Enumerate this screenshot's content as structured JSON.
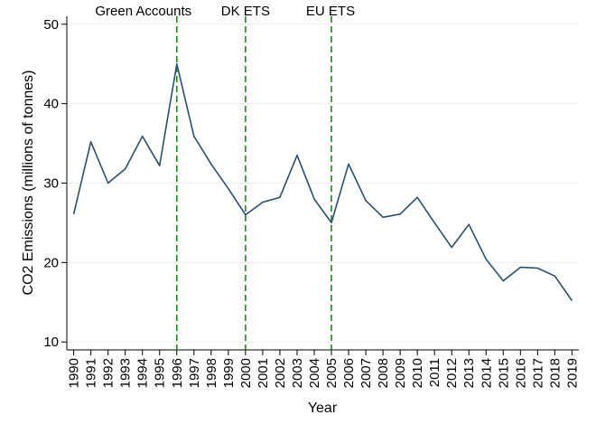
{
  "chart_data": {
    "type": "line",
    "title": "",
    "xlabel": "Year",
    "ylabel": "CO2 Emissions (millions of tonnes)",
    "ylim": [
      9,
      51
    ],
    "xlim": [
      1989.6,
      2019.4
    ],
    "yticks": [
      10,
      20,
      30,
      40,
      50
    ],
    "grid": true,
    "legend": "none",
    "colors": {
      "line": "#2b4f6e",
      "vline": "#1a8a1a",
      "grid": "#ececec"
    },
    "x": [
      1990,
      1991,
      1992,
      1993,
      1994,
      1995,
      1996,
      1997,
      1998,
      1999,
      2000,
      2001,
      2002,
      2003,
      2004,
      2005,
      2006,
      2007,
      2008,
      2009,
      2010,
      2011,
      2012,
      2013,
      2014,
      2015,
      2016,
      2017,
      2018,
      2019
    ],
    "xtick_labels": [
      "1990",
      "1991",
      "1992",
      "1993",
      "1994",
      "1995",
      "1996",
      "1997",
      "1998",
      "1999",
      "2000",
      "2001",
      "2002",
      "2003",
      "2004",
      "2005",
      "2006",
      "2007",
      "2008",
      "2009",
      "2010",
      "2011",
      "2012",
      "2013",
      "2014",
      "2015",
      "2016",
      "2017",
      "2018",
      "2019"
    ],
    "series": [
      {
        "values": [
          26.1,
          35.2,
          30.0,
          31.8,
          35.9,
          32.2,
          45.0,
          35.9,
          32.4,
          29.3,
          26.0,
          27.6,
          28.2,
          33.5,
          28.0,
          25.0,
          32.4,
          27.8,
          25.7,
          26.1,
          28.2,
          25.0,
          21.9,
          24.8,
          20.4,
          17.7,
          19.4,
          19.3,
          18.3,
          15.2
        ]
      }
    ],
    "annotations": [
      {
        "x": 1996,
        "label": "Green Accounts"
      },
      {
        "x": 2000,
        "label": "DK ETS"
      },
      {
        "x": 2005,
        "label": "EU ETS"
      }
    ]
  }
}
